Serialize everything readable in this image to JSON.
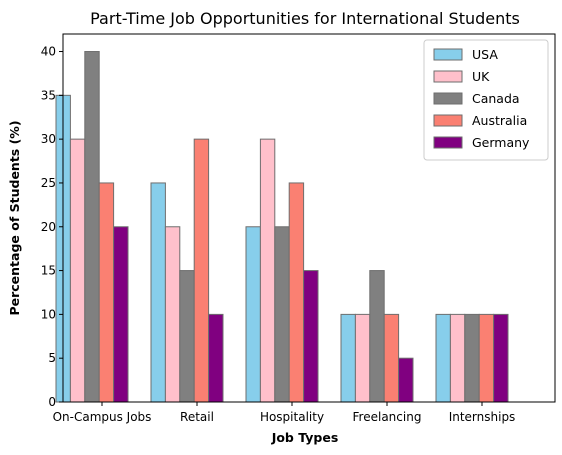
{
  "chart_data": {
    "type": "bar",
    "title": "Part-Time Job Opportunities for International Students",
    "xlabel": "Job Types",
    "ylabel": "Percentage of Students (%)",
    "categories": [
      "On-Campus Jobs",
      "Retail",
      "Hospitality",
      "Freelancing",
      "Internships"
    ],
    "series": [
      {
        "name": "USA",
        "color": "#87ceeb",
        "values": [
          35,
          25,
          20,
          10,
          10
        ]
      },
      {
        "name": "UK",
        "color": "#ffc0cb",
        "values": [
          30,
          20,
          30,
          10,
          10
        ]
      },
      {
        "name": "Canada",
        "color": "#808080",
        "values": [
          40,
          15,
          20,
          15,
          10
        ]
      },
      {
        "name": "Australia",
        "color": "#fa8072",
        "values": [
          25,
          30,
          25,
          10,
          10
        ]
      },
      {
        "name": "Germany",
        "color": "#800080",
        "values": [
          20,
          10,
          15,
          5,
          10
        ]
      }
    ],
    "ylim": [
      0,
      42
    ],
    "yticks": [
      0,
      5,
      10,
      15,
      20,
      25,
      30,
      35,
      40
    ],
    "bar_edge_color": "#6e6e6e",
    "legend_position": "top-right",
    "grid": false
  }
}
